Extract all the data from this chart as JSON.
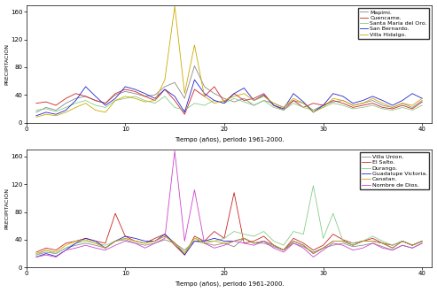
{
  "xlabel": "Tiempo (años), periodo 1961-2000.",
  "ylabel": "PRECIPITACIÓN",
  "ylim": [
    0,
    170
  ],
  "xlim": [
    0,
    41
  ],
  "xticks": [
    0,
    10,
    20,
    30,
    40
  ],
  "yticks": [
    0,
    40,
    80,
    120,
    160
  ],
  "top_series": {
    "Mapimi.": {
      "color": "#888888",
      "data": [
        15,
        22,
        18,
        28,
        35,
        38,
        32,
        28,
        40,
        45,
        42,
        38,
        40,
        52,
        58,
        35,
        82,
        52,
        42,
        35,
        30,
        35,
        25,
        32,
        28,
        22,
        32,
        28,
        18,
        25,
        30,
        32,
        25,
        28,
        32,
        25,
        22,
        28,
        22,
        32
      ]
    },
    "Cuencame.": {
      "color": "#cc2222",
      "data": [
        28,
        30,
        25,
        35,
        42,
        38,
        32,
        28,
        42,
        48,
        45,
        38,
        32,
        48,
        32,
        12,
        48,
        38,
        52,
        30,
        42,
        32,
        35,
        42,
        25,
        18,
        32,
        22,
        28,
        25,
        32,
        28,
        22,
        25,
        28,
        22,
        20,
        25,
        20,
        30
      ]
    },
    "Santa Maria del Oro.": {
      "color": "#88cc88",
      "data": [
        18,
        20,
        16,
        22,
        28,
        32,
        25,
        22,
        32,
        35,
        38,
        32,
        28,
        38,
        22,
        18,
        28,
        25,
        32,
        28,
        35,
        30,
        25,
        32,
        22,
        18,
        28,
        22,
        18,
        22,
        28,
        25,
        20,
        22,
        25,
        20,
        18,
        22,
        18,
        25
      ]
    },
    "San Bernardo.": {
      "color": "#2222cc",
      "data": [
        10,
        15,
        12,
        18,
        32,
        52,
        38,
        25,
        35,
        52,
        48,
        42,
        35,
        48,
        38,
        15,
        62,
        42,
        32,
        28,
        42,
        50,
        32,
        40,
        25,
        20,
        42,
        30,
        15,
        25,
        42,
        38,
        28,
        32,
        38,
        32,
        25,
        32,
        42,
        35
      ]
    },
    "Villa Hidalgo.": {
      "color": "#ccaa00",
      "data": [
        8,
        12,
        10,
        15,
        22,
        28,
        18,
        15,
        32,
        38,
        35,
        30,
        32,
        62,
        168,
        42,
        112,
        38,
        28,
        32,
        38,
        42,
        32,
        38,
        28,
        22,
        35,
        28,
        15,
        22,
        35,
        32,
        25,
        28,
        35,
        28,
        22,
        28,
        25,
        35
      ]
    }
  },
  "bottom_series": {
    "Villa Union.": {
      "color": "#888888",
      "data": [
        18,
        22,
        20,
        28,
        32,
        35,
        32,
        28,
        38,
        40,
        35,
        32,
        35,
        40,
        35,
        25,
        38,
        35,
        32,
        35,
        30,
        42,
        35,
        35,
        30,
        25,
        35,
        30,
        22,
        28,
        32,
        35,
        30,
        32,
        35,
        30,
        25,
        32,
        28,
        35
      ]
    },
    "El Salto.": {
      "color": "#cc2222",
      "data": [
        22,
        28,
        25,
        35,
        38,
        42,
        38,
        35,
        78,
        45,
        38,
        35,
        42,
        48,
        32,
        18,
        45,
        38,
        52,
        42,
        108,
        35,
        38,
        45,
        32,
        25,
        42,
        35,
        25,
        32,
        48,
        40,
        35,
        38,
        42,
        35,
        32,
        38,
        32,
        38
      ]
    },
    "Durango.": {
      "color": "#88cc88",
      "data": [
        18,
        25,
        20,
        28,
        35,
        38,
        35,
        32,
        38,
        42,
        38,
        35,
        38,
        45,
        35,
        22,
        42,
        38,
        38,
        42,
        52,
        48,
        45,
        52,
        38,
        32,
        52,
        48,
        118,
        42,
        78,
        38,
        35,
        38,
        45,
        38,
        32,
        38,
        32,
        38
      ]
    },
    "Guadalupe Victoria.": {
      "color": "#2222cc",
      "data": [
        15,
        20,
        16,
        25,
        35,
        42,
        38,
        28,
        38,
        45,
        42,
        38,
        38,
        48,
        35,
        18,
        38,
        38,
        42,
        38,
        38,
        42,
        35,
        38,
        32,
        25,
        38,
        32,
        20,
        28,
        38,
        38,
        32,
        38,
        38,
        35,
        28,
        38,
        32,
        38
      ]
    },
    "Canatan.": {
      "color": "#ccaa00",
      "data": [
        20,
        25,
        22,
        32,
        38,
        40,
        35,
        28,
        38,
        42,
        38,
        35,
        38,
        45,
        35,
        20,
        42,
        35,
        38,
        35,
        38,
        42,
        35,
        38,
        32,
        25,
        38,
        32,
        20,
        28,
        38,
        38,
        32,
        38,
        38,
        35,
        28,
        38,
        32,
        38
      ]
    },
    "Nombre de Dios.": {
      "color": "#cc44cc",
      "data": [
        15,
        18,
        15,
        25,
        28,
        32,
        28,
        25,
        32,
        38,
        35,
        28,
        35,
        42,
        168,
        38,
        112,
        35,
        28,
        32,
        38,
        35,
        32,
        38,
        28,
        22,
        35,
        28,
        15,
        25,
        35,
        32,
        25,
        28,
        35,
        28,
        25,
        32,
        28,
        35
      ]
    }
  }
}
